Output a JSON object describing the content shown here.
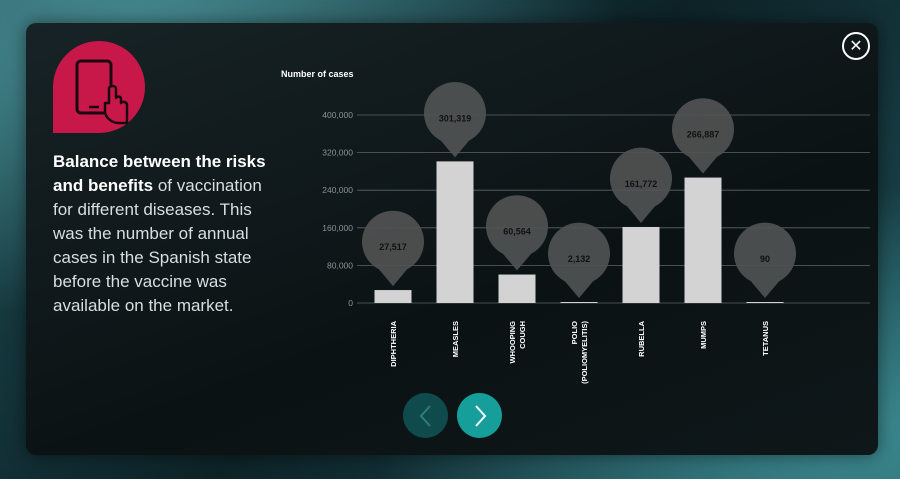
{
  "description": {
    "bold": "Balance between the risks and benefits",
    "rest": " of vaccination for different diseases. This was the number of annual cases in the Spanish state before the vaccine was available on the market."
  },
  "close_label": "✕",
  "icons": {
    "logo": "tablet-touch-icon",
    "close": "close-icon",
    "prev": "chevron-left-icon",
    "next": "chevron-right-icon"
  },
  "colors": {
    "accent": "#c8184a",
    "next_button": "#159e9a",
    "prev_button": "#0f4b4c",
    "bars": "#d3d3d3",
    "bubble": "#505252"
  },
  "chart_data": {
    "type": "bar",
    "ylabel": "Number of cases",
    "ylim": [
      0,
      400000
    ],
    "yticks": [
      0,
      80000,
      160000,
      240000,
      320000,
      400000
    ],
    "ytick_labels": [
      "0",
      "80,000",
      "160,000",
      "240,000",
      "320,000",
      "400,000"
    ],
    "grid": true,
    "categories": [
      "DIPHTHERIA",
      "MEASLES",
      "WHOOPING COUGH",
      "POLIO (POLIOMYELITIS)",
      "RUBELLA",
      "MUMPS",
      "TETANUS"
    ],
    "category_lines": [
      [
        "DIPHTHERIA"
      ],
      [
        "MEASLES"
      ],
      [
        "WHOOPING",
        "COUGH"
      ],
      [
        "POLIO",
        "(POLIOMYELITIS)"
      ],
      [
        "RUBELLA"
      ],
      [
        "MUMPS"
      ],
      [
        "TETANUS"
      ]
    ],
    "values": [
      27517,
      301319,
      60564,
      2132,
      161772,
      266887,
      90
    ],
    "data_labels": [
      "27,517",
      "301,319",
      "60,564",
      "2,132",
      "161,772",
      "266,887",
      "90"
    ]
  }
}
